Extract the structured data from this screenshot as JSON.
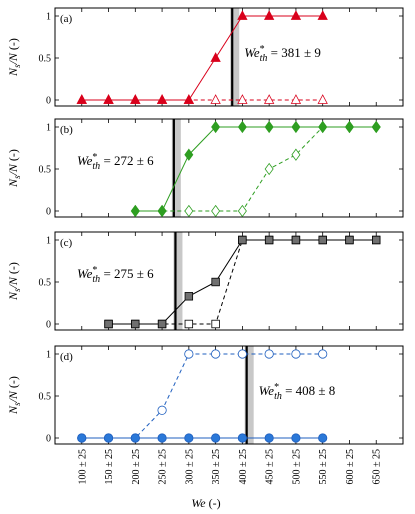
{
  "chart_data": {
    "type": "scatter",
    "x_categories": [
      "100 ± 25",
      "150 ± 25",
      "200 ± 25",
      "250 ± 25",
      "300 ± 25",
      "350 ± 25",
      "400 ± 25",
      "450 ± 25",
      "500 ± 25",
      "550 ± 25",
      "600 ± 25",
      "650 ± 25"
    ],
    "x_values": [
      100,
      150,
      200,
      250,
      300,
      350,
      400,
      450,
      500,
      550,
      600,
      650
    ],
    "xlim": [
      50,
      700
    ],
    "xlabel": "We (-)",
    "ylabel": "Ns/N (-)",
    "ylim": [
      0,
      1
    ],
    "yticks": [
      "0",
      "0.5",
      "1"
    ],
    "panels": [
      {
        "tag": "(a)",
        "color": "#d9001b",
        "marker": "triangle",
        "threshold": 381,
        "annotation": "We*th = 381 ± 9",
        "annotation_parts": {
          "base": "We",
          "sup": "*",
          "sub": "th",
          "rest": " = 381 ± 9"
        },
        "annotation_pos": "right",
        "series": [
          {
            "style": "filled-solid",
            "x": [
              100,
              150,
              200,
              250,
              300,
              350,
              400,
              450,
              500,
              550
            ],
            "y": [
              0,
              0,
              0,
              0,
              0,
              0.5,
              1,
              1,
              1,
              1
            ]
          },
          {
            "style": "open-dashed",
            "x": [
              100,
              150,
              200,
              250,
              300,
              350,
              400,
              450,
              500,
              550
            ],
            "y": [
              0,
              0,
              0,
              0,
              0,
              0,
              0,
              0,
              0,
              0
            ]
          }
        ]
      },
      {
        "tag": "(b)",
        "color": "#2e9e21",
        "marker": "diamond",
        "threshold": 272,
        "annotation": "We*th = 272 ± 6",
        "annotation_parts": {
          "base": "We",
          "sup": "*",
          "sub": "th",
          "rest": " = 272 ± 6"
        },
        "annotation_pos": "left",
        "series": [
          {
            "style": "filled-solid",
            "x": [
              200,
              250,
              300,
              350,
              400,
              450,
              500,
              550,
              600,
              650
            ],
            "y": [
              0,
              0,
              0.67,
              1,
              1,
              1,
              1,
              1,
              1,
              1
            ]
          },
          {
            "style": "open-dashed",
            "x": [
              200,
              250,
              300,
              350,
              400,
              450,
              500,
              550,
              600,
              650
            ],
            "y": [
              0,
              0,
              0,
              0,
              0,
              0.5,
              0.67,
              1,
              1,
              1
            ]
          }
        ]
      },
      {
        "tag": "(c)",
        "color": "#000000",
        "fill": "#707070",
        "marker": "square",
        "threshold": 275,
        "annotation": "We*th = 275 ± 6",
        "annotation_parts": {
          "base": "We",
          "sup": "*",
          "sub": "th",
          "rest": " = 275 ± 6"
        },
        "annotation_pos": "left",
        "series": [
          {
            "style": "filled-solid",
            "x": [
              150,
              200,
              250,
              300,
              350,
              400,
              450,
              500,
              550,
              600,
              650
            ],
            "y": [
              0,
              0,
              0,
              0.33,
              0.5,
              1,
              1,
              1,
              1,
              1,
              1
            ]
          },
          {
            "style": "open-dashed",
            "x": [
              150,
              200,
              250,
              300,
              350,
              400,
              450,
              500,
              550,
              600,
              650
            ],
            "y": [
              0,
              0,
              0,
              0,
              0,
              1,
              1,
              1,
              1,
              1,
              1
            ]
          }
        ]
      },
      {
        "tag": "(d)",
        "color": "#1f5fbf",
        "fill": "#2a78d8",
        "marker": "circle",
        "threshold": 408,
        "annotation": "We*th = 408 ± 8",
        "annotation_parts": {
          "base": "We",
          "sup": "*",
          "sub": "th",
          "rest": " = 408 ± 8"
        },
        "annotation_pos": "right",
        "series": [
          {
            "style": "filled-solid",
            "x": [
              100,
              150,
              200,
              250,
              300,
              350,
              400,
              450,
              500,
              550
            ],
            "y": [
              0,
              0,
              0,
              0,
              0,
              0,
              0,
              0,
              0,
              0
            ]
          },
          {
            "style": "open-dashed",
            "x": [
              100,
              150,
              200,
              250,
              300,
              350,
              400,
              450,
              500,
              550
            ],
            "y": [
              0,
              0,
              0,
              0.33,
              1,
              1,
              1,
              1,
              1,
              1
            ]
          }
        ]
      }
    ]
  }
}
